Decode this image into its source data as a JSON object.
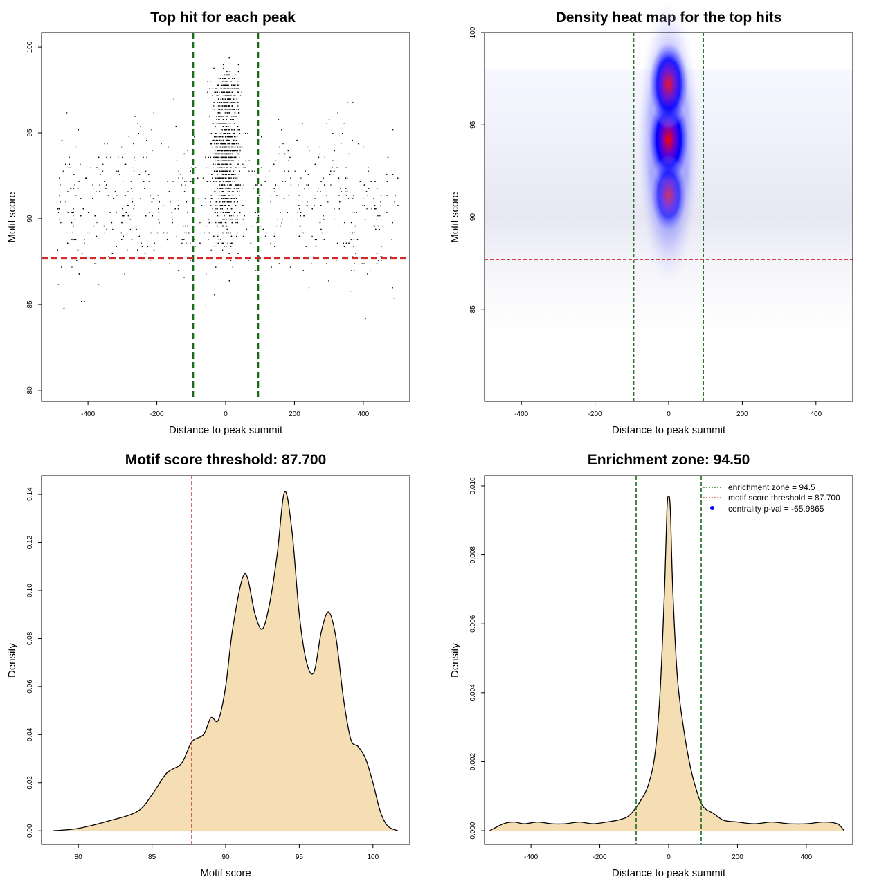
{
  "chart_data": [
    {
      "type": "scatter",
      "title": "Top hit for each peak",
      "xlabel": "Distance to peak summit",
      "ylabel": "Motif score",
      "xlim": [
        -535,
        535
      ],
      "ylim": [
        79.35,
        100.85
      ],
      "xticks": [
        -400,
        -200,
        0,
        200,
        400
      ],
      "yticks": [
        80,
        85,
        90,
        95,
        100
      ],
      "threshold_y": 87.7,
      "zone_x": [
        -94.5,
        94.5
      ],
      "n_points_approx": 3000,
      "point_density_note": "points concentrated within +/-100 of summit; scores 80-100"
    },
    {
      "type": "heatmap",
      "title": "Density heat map for the top hits",
      "xlabel": "Distance to peak summit",
      "ylabel": "Motif score",
      "xlim": [
        -500,
        500
      ],
      "ylim": [
        80,
        100
      ],
      "xticks": [
        -400,
        -200,
        0,
        200,
        400
      ],
      "yticks": [
        85,
        90,
        95,
        100
      ],
      "threshold_y": 87.7,
      "zone_x": [
        -94.5,
        94.5
      ],
      "hotspots": [
        {
          "x": 0,
          "y": 94.2,
          "weight": 1.0
        },
        {
          "x": 0,
          "y": 97.2,
          "weight": 0.85
        },
        {
          "x": 0,
          "y": 91.2,
          "weight": 0.6
        }
      ]
    },
    {
      "type": "area",
      "title": "Motif score threshold: 87.700",
      "xlabel": "Motif score",
      "ylabel": "Density",
      "xlim": [
        77.5,
        102.5
      ],
      "ylim": [
        -0.0057,
        0.1478
      ],
      "xticks": [
        80,
        85,
        90,
        95,
        100
      ],
      "yticks": [
        0.0,
        0.02,
        0.04,
        0.06,
        0.08,
        0.1,
        0.12,
        0.14
      ],
      "ytick_labels": [
        "0.00",
        "0.02",
        "0.04",
        "0.06",
        "0.08",
        "0.10",
        "0.12",
        "0.14"
      ],
      "threshold_x": 87.7,
      "x": [
        78.3,
        80,
        82,
        84,
        85,
        86,
        87,
        87.7,
        88.5,
        89,
        89.5,
        90,
        90.5,
        91.3,
        92,
        92.5,
        93,
        93.5,
        94,
        94.5,
        95,
        95.5,
        96,
        96.5,
        97,
        97.5,
        98,
        98.5,
        99,
        99.5,
        100,
        100.5,
        101,
        101.7
      ],
      "y": [
        0.0,
        0.001,
        0.004,
        0.008,
        0.015,
        0.024,
        0.028,
        0.037,
        0.04,
        0.047,
        0.046,
        0.06,
        0.085,
        0.107,
        0.09,
        0.084,
        0.095,
        0.115,
        0.141,
        0.125,
        0.09,
        0.07,
        0.066,
        0.083,
        0.091,
        0.08,
        0.055,
        0.038,
        0.035,
        0.03,
        0.02,
        0.008,
        0.002,
        0.0
      ]
    },
    {
      "type": "area",
      "title": "Enrichment zone: 94.50",
      "xlabel": "Distance to peak summit",
      "ylabel": "Density",
      "xlim": [
        -535,
        535
      ],
      "ylim": [
        -0.0004,
        0.0103
      ],
      "xticks": [
        -400,
        -200,
        0,
        200,
        400
      ],
      "yticks": [
        0.0,
        0.002,
        0.004,
        0.006,
        0.008,
        0.01
      ],
      "ytick_labels": [
        "0.000",
        "0.002",
        "0.004",
        "0.006",
        "0.008",
        "0.010"
      ],
      "zone_x": [
        -94.5,
        94.5
      ],
      "x": [
        -520,
        -480,
        -450,
        -420,
        -380,
        -340,
        -300,
        -260,
        -220,
        -180,
        -150,
        -120,
        -100,
        -80,
        -60,
        -40,
        -25,
        -12,
        -5,
        0,
        5,
        12,
        25,
        40,
        60,
        80,
        100,
        130,
        160,
        200,
        250,
        300,
        350,
        400,
        450,
        490,
        510
      ],
      "y": [
        0.0,
        0.0002,
        0.00025,
        0.0002,
        0.00025,
        0.0002,
        0.0002,
        0.00025,
        0.0002,
        0.00025,
        0.0003,
        0.0004,
        0.0006,
        0.0009,
        0.0013,
        0.0022,
        0.004,
        0.007,
        0.0093,
        0.0097,
        0.0093,
        0.007,
        0.0045,
        0.0032,
        0.002,
        0.0012,
        0.0007,
        0.0005,
        0.0003,
        0.00025,
        0.0002,
        0.00025,
        0.0002,
        0.0002,
        0.00025,
        0.0002,
        0.0
      ],
      "legend": [
        {
          "label": "enrichment zone = 94.5",
          "color": "#006400",
          "style": "dotted-line"
        },
        {
          "label": "motif score threshold = 87.700",
          "color": "#cc3333",
          "style": "dotted-line"
        },
        {
          "label": "centrality p-val = -65.9865",
          "color": "#0000ff",
          "style": "point"
        }
      ]
    }
  ],
  "colors": {
    "threshold": "#d62728",
    "zone": "#1a6b1a",
    "fill": "#f5deb3",
    "point": "#000000"
  }
}
